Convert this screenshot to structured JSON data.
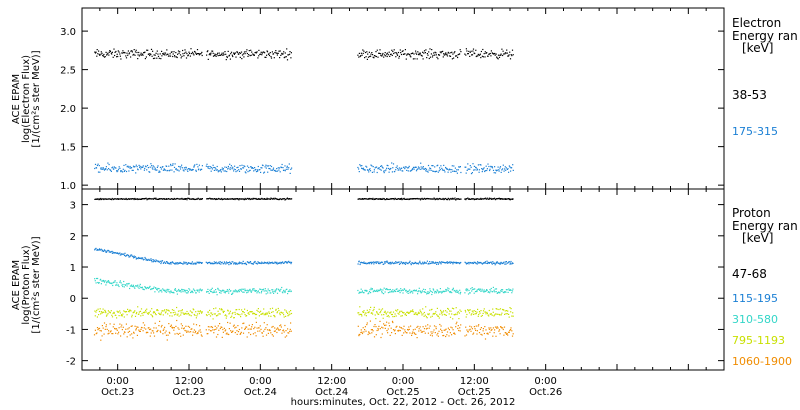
{
  "xaxis": {
    "title": "hours:minutes, Oct. 22, 2012 - Oct. 26, 2012",
    "range_hours": [
      -6,
      102
    ],
    "ticks": [
      {
        "h": 0,
        "time": "0:00",
        "date": "Oct.23"
      },
      {
        "h": 12,
        "time": "12:00",
        "date": "Oct.23"
      },
      {
        "h": 24,
        "time": "0:00",
        "date": "Oct.24"
      },
      {
        "h": 36,
        "time": "12:00",
        "date": "Oct.24"
      },
      {
        "h": 48,
        "time": "0:00",
        "date": "Oct.25"
      },
      {
        "h": 60,
        "time": "12:00",
        "date": "Oct.25"
      },
      {
        "h": 72,
        "time": "0:00",
        "date": "Oct.26"
      }
    ]
  },
  "chart_data": [
    {
      "type": "scatter",
      "ylabel": [
        "ACE EPAM",
        "log(Electron Flux)",
        "[1/(cm²s ster MeV)]"
      ],
      "ylim": [
        0.95,
        3.3
      ],
      "yticks": [
        1.0,
        1.5,
        2.0,
        2.5,
        3.0
      ],
      "ytick_labels": [
        "1.0",
        "1.5",
        "2.0",
        "2.5",
        "3.0"
      ],
      "legend_title": [
        "Electron",
        "Energy ran",
        "[keV]"
      ],
      "series": [
        {
          "name": "38-53",
          "color": "#000000",
          "level": 2.71,
          "spread": 0.05
        },
        {
          "name": "175-315",
          "color": "#1a7fd4",
          "level": 1.22,
          "spread": 0.05
        }
      ]
    },
    {
      "type": "scatter",
      "ylabel": [
        "ACE EPAM",
        "log(Proton Flux)",
        "[1/(cm²s ster MeV)]"
      ],
      "ylim": [
        -2.3,
        3.5
      ],
      "yticks": [
        -2,
        -1,
        0,
        1,
        2,
        3
      ],
      "ytick_labels": [
        "-2",
        "-1",
        "0",
        "1",
        "2",
        "3"
      ],
      "legend_title": [
        "Proton",
        "Energy ran",
        "[keV]"
      ],
      "series": [
        {
          "name": "47-68",
          "color": "#000000",
          "level": 3.2,
          "spread": 0.02
        },
        {
          "name": "115-195",
          "color": "#1a7fd4",
          "level": 1.15,
          "start_level": 1.6,
          "spread": 0.04
        },
        {
          "name": "310-580",
          "color": "#33d6c8",
          "level": 0.25,
          "start_level": 0.6,
          "spread": 0.08
        },
        {
          "name": "795-1193",
          "color": "#c8e000",
          "level": -0.45,
          "spread": 0.13
        },
        {
          "name": "1060-1900",
          "color": "#f08c00",
          "level": -1.0,
          "spread": 0.2
        }
      ]
    }
  ],
  "data_segments_hours": [
    [
      -4,
      14.2
    ],
    [
      14.8,
      29.2
    ],
    [
      40.3,
      57.7
    ],
    [
      58.3,
      66.5
    ]
  ]
}
